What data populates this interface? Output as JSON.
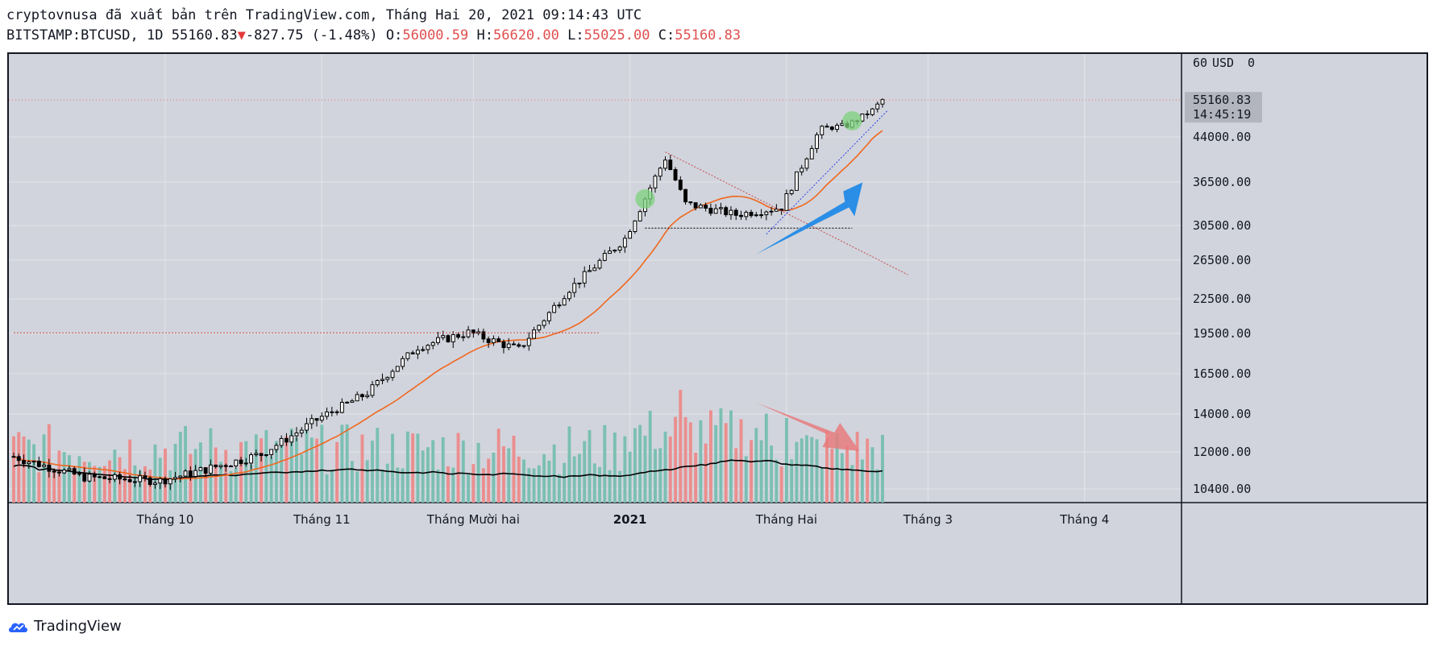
{
  "header": {
    "line1": "cryptovnusa đã xuất bản trên TradingView.com, Tháng Hai 20, 2021 09:14:43 UTC",
    "symbol": "BITSTAMP:BTCUSD, 1D",
    "last": "55160.83",
    "change": "-827.75 (-1.48%)",
    "o_label": "O:",
    "o": "56000.59",
    "h_label": "H:",
    "h": "56620.00",
    "l_label": "L:",
    "l": "55025.00",
    "c_label": "C:",
    "c": "55160.83"
  },
  "footer": {
    "brand": "TradingView"
  },
  "chart_data": {
    "type": "candlestick",
    "currency": "USD",
    "price_axis_ticks": [
      10400,
      12000,
      14000,
      16500,
      19500,
      22500,
      26500,
      30500,
      36500,
      44000
    ],
    "price_axis_top_label": "60",
    "price_axis_currency_label": "USD",
    "price_axis_zero_label": "0",
    "last_price_label": "55160.83",
    "countdown_label": "14:45:19",
    "time_axis_labels": [
      {
        "label": "Tháng 10",
        "bold": false
      },
      {
        "label": "Tháng 11",
        "bold": false
      },
      {
        "label": "Tháng Mười hai",
        "bold": false
      },
      {
        "label": "2021",
        "bold": true
      },
      {
        "label": "Tháng Hai",
        "bold": false
      },
      {
        "label": "Tháng 3",
        "bold": false
      },
      {
        "label": "Tháng 4",
        "bold": false
      }
    ],
    "start_date": "2020-09-01",
    "end_date": "2021-02-20",
    "candle_keypoints": [
      {
        "date": "2020-09-01",
        "close": 11800
      },
      {
        "date": "2020-09-15",
        "close": 10900
      },
      {
        "date": "2020-09-30",
        "close": 10750
      },
      {
        "date": "2020-10-10",
        "close": 11300
      },
      {
        "date": "2020-10-20",
        "close": 11900
      },
      {
        "date": "2020-10-31",
        "close": 13700
      },
      {
        "date": "2020-11-10",
        "close": 15300
      },
      {
        "date": "2020-11-20",
        "close": 18500
      },
      {
        "date": "2020-11-30",
        "close": 19600
      },
      {
        "date": "2020-12-10",
        "close": 18300
      },
      {
        "date": "2020-12-20",
        "close": 23500
      },
      {
        "date": "2020-12-31",
        "close": 29000
      },
      {
        "date": "2021-01-08",
        "close": 40500
      },
      {
        "date": "2021-01-12",
        "close": 33500
      },
      {
        "date": "2021-01-22",
        "close": 32000
      },
      {
        "date": "2021-01-31",
        "close": 33000
      },
      {
        "date": "2021-02-08",
        "close": 46500
      },
      {
        "date": "2021-02-13",
        "close": 47500
      },
      {
        "date": "2021-02-18",
        "close": 52000
      },
      {
        "date": "2021-02-20",
        "close": 55160
      }
    ],
    "moving_average_color": "#f0671e",
    "volume_ma_color": "#000000",
    "colors": {
      "background": "#d1d4dc",
      "grid": "#e3e5ea",
      "up_body": "#ffffff",
      "down_body": "#000000",
      "volume_up": "#7bbfb3",
      "volume_down": "#eb8e8e",
      "blue_arrow": "#2a8ee6",
      "red_arrow": "#e77b7e",
      "highlight_circle": "#7cd27c",
      "trend_blue": "#2d3fe8",
      "trend_red": "#c84a4a"
    },
    "grid": true,
    "annotations": [
      {
        "type": "arrow",
        "color_key": "blue_arrow",
        "direction": "up"
      },
      {
        "type": "arrow",
        "color_key": "red_arrow",
        "direction": "down"
      },
      {
        "type": "circle",
        "color_key": "highlight_circle",
        "date": "2021-01-04"
      },
      {
        "type": "circle",
        "color_key": "highlight_circle",
        "date": "2021-02-14"
      }
    ]
  }
}
